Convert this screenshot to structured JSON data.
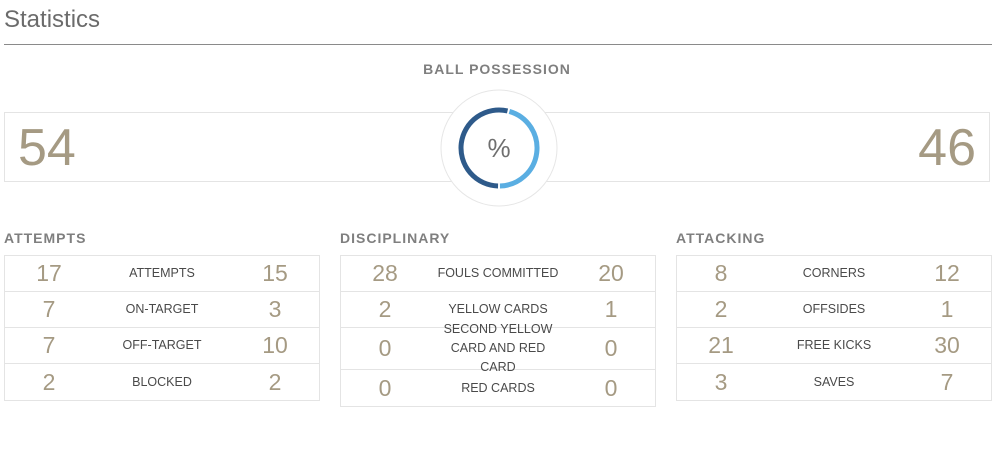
{
  "header": {
    "title": "Statistics"
  },
  "possession": {
    "label": "BALL POSSESSION",
    "home": "54",
    "away": "46",
    "unit": "%",
    "home_fraction": 0.54,
    "colors": {
      "home": "#2e5a8a",
      "away": "#5aaee2",
      "ring_bg": "#e6e6e6"
    }
  },
  "sections": [
    {
      "title": "ATTEMPTS",
      "rows": [
        {
          "home": "17",
          "label": "ATTEMPTS",
          "away": "15"
        },
        {
          "home": "7",
          "label": "ON-TARGET",
          "away": "3"
        },
        {
          "home": "7",
          "label": "OFF-TARGET",
          "away": "10"
        },
        {
          "home": "2",
          "label": "BLOCKED",
          "away": "2"
        }
      ]
    },
    {
      "title": "DISCIPLINARY",
      "rows": [
        {
          "home": "28",
          "label": "FOULS COMMITTED",
          "away": "20"
        },
        {
          "home": "2",
          "label": "YELLOW CARDS",
          "away": "1"
        },
        {
          "home": "0",
          "label": "SECOND YELLOW CARD AND RED CARD",
          "away": "0"
        },
        {
          "home": "0",
          "label": "RED CARDS",
          "away": "0"
        }
      ]
    },
    {
      "title": "ATTACKING",
      "rows": [
        {
          "home": "8",
          "label": "CORNERS",
          "away": "12"
        },
        {
          "home": "2",
          "label": "OFFSIDES",
          "away": "1"
        },
        {
          "home": "21",
          "label": "FREE KICKS",
          "away": "30"
        },
        {
          "home": "3",
          "label": "SAVES",
          "away": "7"
        }
      ]
    }
  ]
}
